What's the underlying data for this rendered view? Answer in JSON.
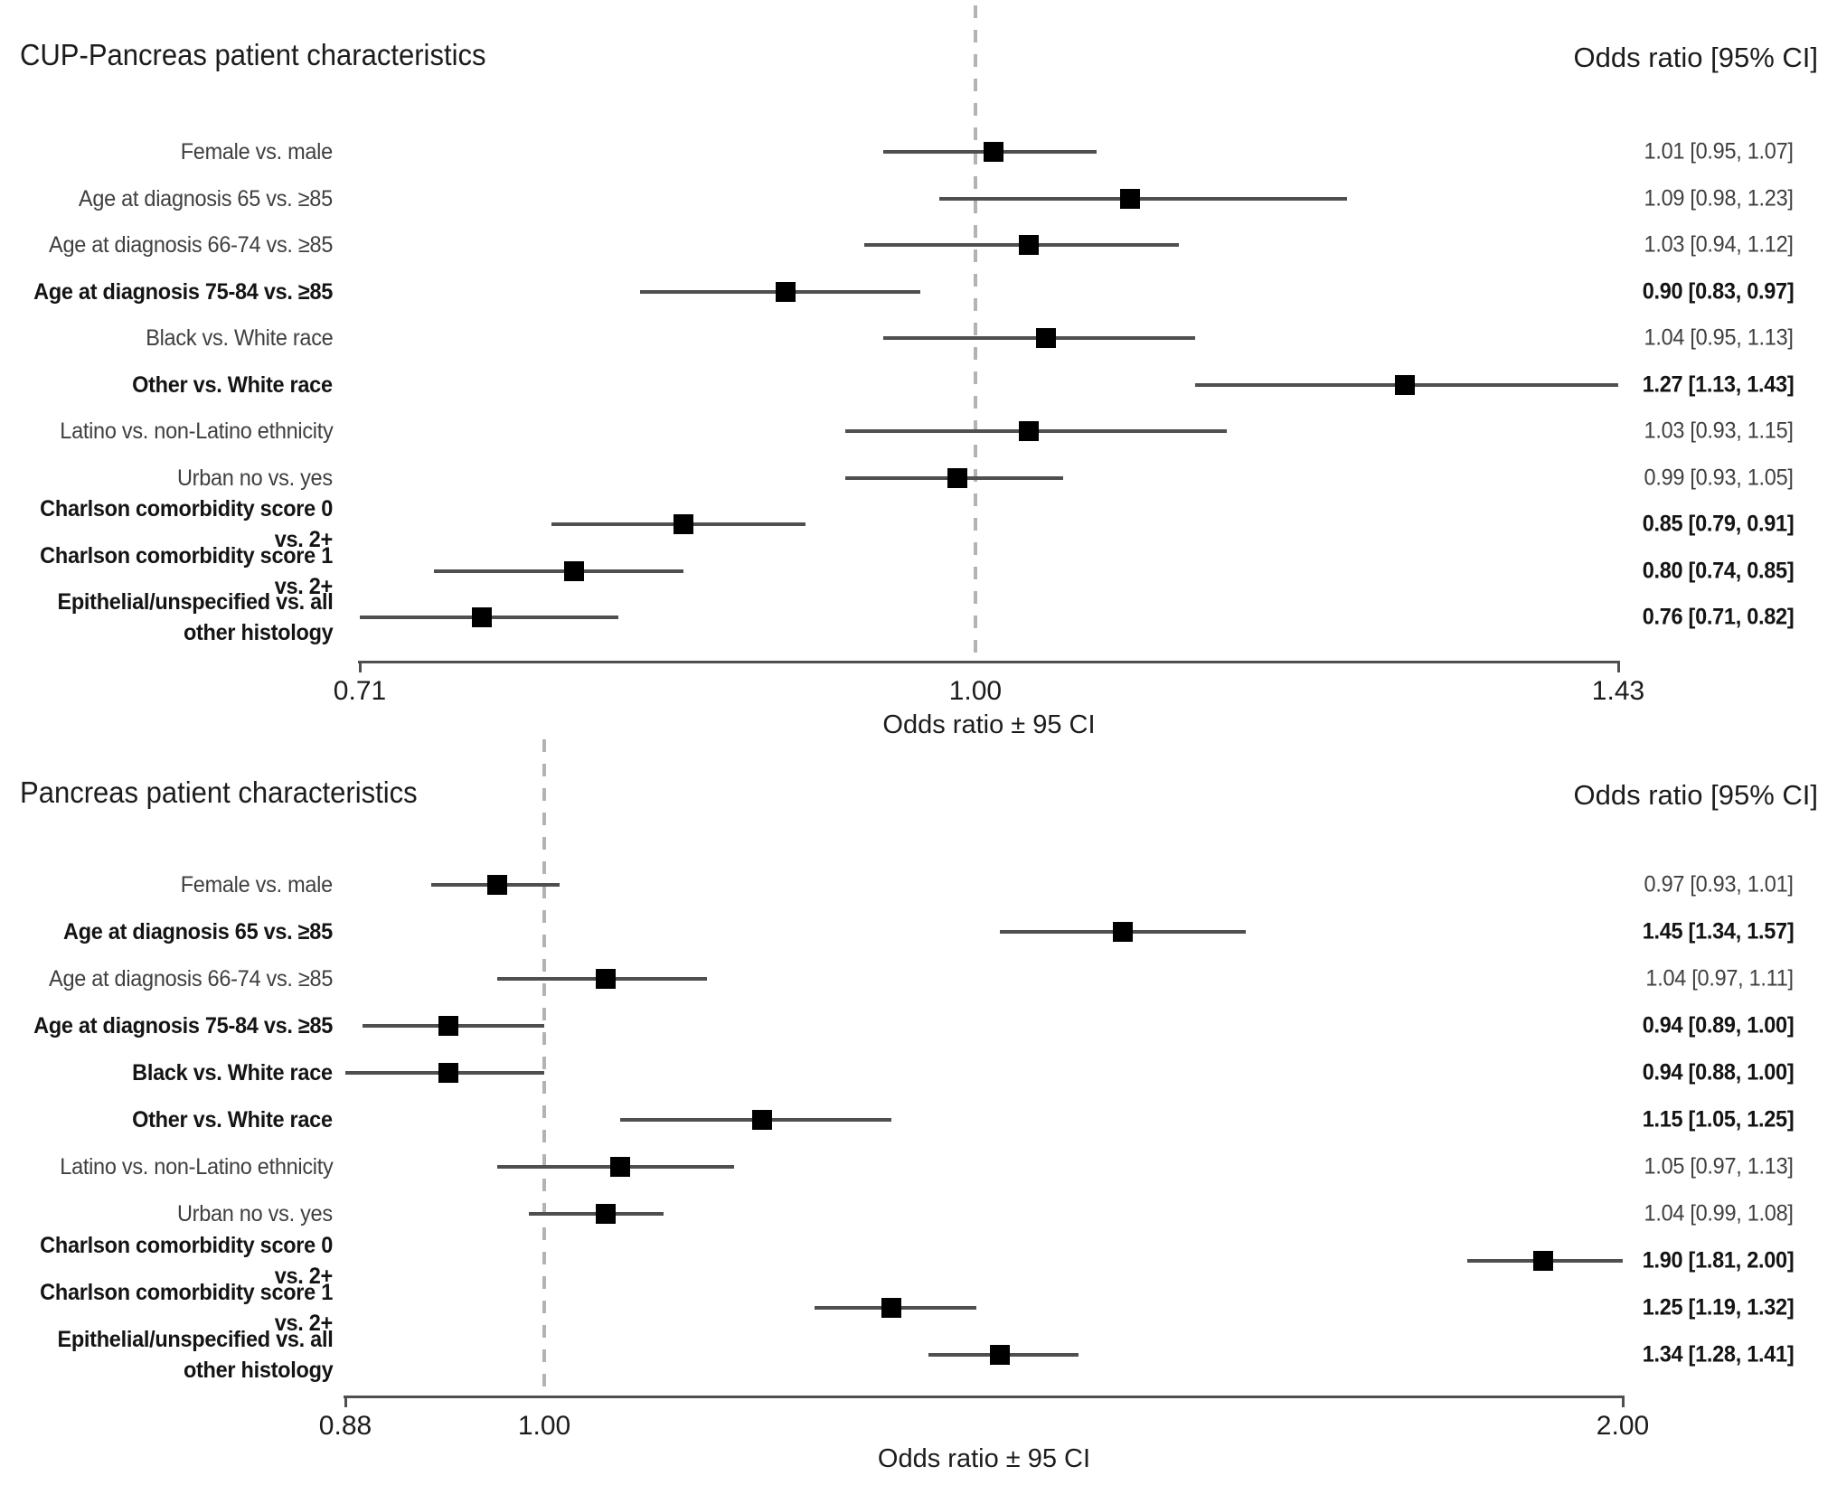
{
  "colors": {
    "marker": "#000000",
    "ci_line": "#4f4f4f",
    "axis": "#4f4f4f",
    "reference_dash": "#b3b3b3",
    "text_regular": "#3f3f3f",
    "text_bold": "#141414"
  },
  "chart_data": [
    {
      "type": "forest",
      "title": "CUP-Pancreas patient characteristics",
      "column_header": "Odds ratio [95% CI]",
      "xlabel": "Odds ratio ± 95 CI",
      "scale": "log",
      "xlim": [
        0.71,
        1.43
      ],
      "reference_line": 1.0,
      "ticks": [
        {
          "value": 0.71,
          "label": "0.71"
        },
        {
          "value": 1.0,
          "label": "1.00"
        },
        {
          "value": 1.43,
          "label": "1.43"
        }
      ],
      "rows": [
        {
          "label": "Female vs. male",
          "or": 1.01,
          "ci": [
            0.95,
            1.07
          ],
          "display": "1.01 [0.95, 1.07]",
          "bold": false
        },
        {
          "label": "Age at diagnosis 65 vs. ≥85",
          "or": 1.09,
          "ci": [
            0.98,
            1.23
          ],
          "display": "1.09 [0.98, 1.23]",
          "bold": false
        },
        {
          "label": "Age at diagnosis 66-74 vs. ≥85",
          "or": 1.03,
          "ci": [
            0.94,
            1.12
          ],
          "display": "1.03 [0.94, 1.12]",
          "bold": false
        },
        {
          "label": "Age at diagnosis 75-84 vs. ≥85",
          "or": 0.9,
          "ci": [
            0.83,
            0.97
          ],
          "display": "0.90 [0.83, 0.97]",
          "bold": true
        },
        {
          "label": "Black vs. White race",
          "or": 1.04,
          "ci": [
            0.95,
            1.13
          ],
          "display": "1.04 [0.95, 1.13]",
          "bold": false
        },
        {
          "label": "Other vs. White race",
          "or": 1.27,
          "ci": [
            1.13,
            1.43
          ],
          "display": "1.27 [1.13, 1.43]",
          "bold": true
        },
        {
          "label": "Latino vs. non-Latino ethnicity",
          "or": 1.03,
          "ci": [
            0.93,
            1.15
          ],
          "display": "1.03 [0.93, 1.15]",
          "bold": false
        },
        {
          "label": "Urban no vs. yes",
          "or": 0.99,
          "ci": [
            0.93,
            1.05
          ],
          "display": "0.99 [0.93, 1.05]",
          "bold": false
        },
        {
          "label": "Charlson comorbidity score 0 vs. 2+",
          "or": 0.85,
          "ci": [
            0.79,
            0.91
          ],
          "display": "0.85 [0.79, 0.91]",
          "bold": true
        },
        {
          "label": "Charlson comorbidity score 1 vs. 2+",
          "or": 0.8,
          "ci": [
            0.74,
            0.85
          ],
          "display": "0.80 [0.74, 0.85]",
          "bold": true
        },
        {
          "label": "Epithelial/unspecified vs. all\nother histology",
          "or": 0.76,
          "ci": [
            0.71,
            0.82
          ],
          "display": "0.76 [0.71, 0.82]",
          "bold": true
        }
      ]
    },
    {
      "type": "forest",
      "title": "Pancreas patient characteristics",
      "column_header": "Odds ratio [95% CI]",
      "xlabel": "Odds ratio ± 95 CI",
      "scale": "log",
      "xlim": [
        0.88,
        2.0
      ],
      "reference_line": 1.0,
      "ticks": [
        {
          "value": 0.88,
          "label": "0.88"
        },
        {
          "value": 1.0,
          "label": "1.00"
        },
        {
          "value": 2.0,
          "label": "2.00"
        }
      ],
      "rows": [
        {
          "label": "Female vs. male",
          "or": 0.97,
          "ci": [
            0.93,
            1.01
          ],
          "display": "0.97 [0.93, 1.01]",
          "bold": false
        },
        {
          "label": "Age at diagnosis 65 vs. ≥85",
          "or": 1.45,
          "ci": [
            1.34,
            1.57
          ],
          "display": "1.45 [1.34, 1.57]",
          "bold": true
        },
        {
          "label": "Age at diagnosis 66-74 vs. ≥85",
          "or": 1.04,
          "ci": [
            0.97,
            1.11
          ],
          "display": "1.04 [0.97, 1.11]",
          "bold": false
        },
        {
          "label": "Age at diagnosis 75-84 vs. ≥85",
          "or": 0.94,
          "ci": [
            0.89,
            1.0
          ],
          "display": "0.94 [0.89, 1.00]",
          "bold": true
        },
        {
          "label": "Black vs. White race",
          "or": 0.94,
          "ci": [
            0.88,
            1.0
          ],
          "display": "0.94 [0.88, 1.00]",
          "bold": true
        },
        {
          "label": "Other vs. White race",
          "or": 1.15,
          "ci": [
            1.05,
            1.25
          ],
          "display": "1.15 [1.05, 1.25]",
          "bold": true
        },
        {
          "label": "Latino vs. non-Latino ethnicity",
          "or": 1.05,
          "ci": [
            0.97,
            1.13
          ],
          "display": "1.05 [0.97, 1.13]",
          "bold": false
        },
        {
          "label": "Urban no vs. yes",
          "or": 1.04,
          "ci": [
            0.99,
            1.08
          ],
          "display": "1.04 [0.99, 1.08]",
          "bold": false
        },
        {
          "label": "Charlson comorbidity score 0 vs. 2+",
          "or": 1.9,
          "ci": [
            1.81,
            2.0
          ],
          "display": "1.90 [1.81, 2.00]",
          "bold": true
        },
        {
          "label": "Charlson comorbidity score 1 vs. 2+",
          "or": 1.25,
          "ci": [
            1.19,
            1.32
          ],
          "display": "1.25 [1.19, 1.32]",
          "bold": true
        },
        {
          "label": "Epithelial/unspecified vs. all\nother histology",
          "or": 1.34,
          "ci": [
            1.28,
            1.41
          ],
          "display": "1.34 [1.28, 1.41]",
          "bold": true
        }
      ]
    }
  ]
}
